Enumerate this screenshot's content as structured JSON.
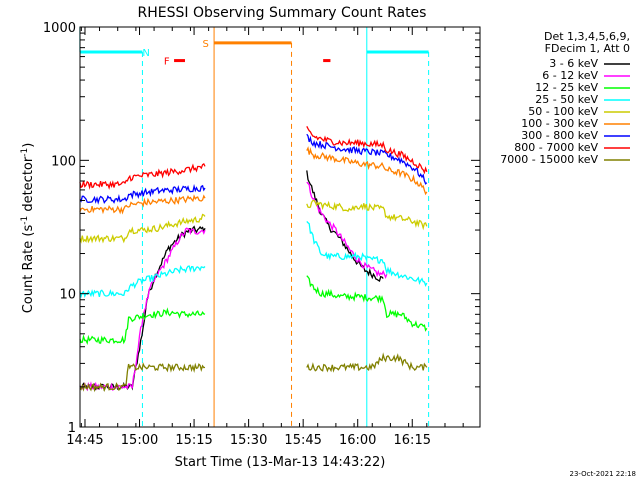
{
  "chart_data": {
    "type": "line",
    "title": "RHESSI Observing Summary Count Rates",
    "xlabel": "Start Time (13-Mar-13 14:43:22)",
    "ylabel_main": "Count Rate (s",
    "ylabel_sup1": "-1",
    "ylabel_mid": " detector",
    "ylabel_sup2": "-1",
    "ylabel_end": ")",
    "yscale": "log",
    "xlim_minutes": [
      -1.37,
      108.63
    ],
    "ylim": [
      1,
      1000
    ],
    "x_ticks": [
      {
        "label": "14:45",
        "t": 0
      },
      {
        "label": "15:00",
        "t": 15
      },
      {
        "label": "15:15",
        "t": 30
      },
      {
        "label": "15:30",
        "t": 45
      },
      {
        "label": "15:45",
        "t": 60
      },
      {
        "label": "16:00",
        "t": 75
      },
      {
        "label": "16:15",
        "t": 90
      }
    ],
    "y_ticks": [
      {
        "label": "1",
        "v": 1
      },
      {
        "label": "10",
        "v": 10
      },
      {
        "label": "100",
        "v": 100
      },
      {
        "label": "1000",
        "v": 1000
      }
    ],
    "legend_header": [
      "Det 1,3,4,5,6,9,",
      "FDecim 1, Att 0"
    ],
    "legend_position": "right-outside",
    "series": [
      {
        "name": "3 - 6 keV",
        "color": "#000000",
        "segments": [
          [
            [
              -1.4,
              2.0
            ],
            [
              13,
              2.0
            ],
            [
              16,
              5.5
            ],
            [
              17,
              9
            ],
            [
              19,
              13
            ],
            [
              21,
              17
            ],
            [
              23,
              22
            ],
            [
              25,
              25
            ],
            [
              27,
              28
            ],
            [
              29,
              30
            ],
            [
              31,
              30
            ],
            [
              33,
              31
            ]
          ],
          [
            [
              61,
              80
            ],
            [
              63,
              55
            ],
            [
              65,
              40
            ],
            [
              67,
              32
            ],
            [
              69,
              28
            ],
            [
              71,
              24
            ],
            [
              73,
              20
            ],
            [
              75,
              17
            ],
            [
              77,
              15
            ],
            [
              79,
              14
            ],
            [
              81,
              13
            ],
            [
              82,
              13
            ]
          ]
        ]
      },
      {
        "name": "6 - 12 keV",
        "color": "#ff00ff",
        "segments": [
          [
            [
              -1.4,
              2.0
            ],
            [
              13,
              2.0
            ],
            [
              16,
              7
            ],
            [
              18,
              11
            ],
            [
              20,
              14
            ],
            [
              22,
              17
            ],
            [
              24,
              21
            ],
            [
              26,
              26
            ],
            [
              28,
              30
            ],
            [
              30,
              29
            ],
            [
              33,
              30
            ]
          ],
          [
            [
              61,
              70
            ],
            [
              63,
              50
            ],
            [
              65,
              40
            ],
            [
              67,
              34
            ],
            [
              69,
              30
            ],
            [
              71,
              25
            ],
            [
              73,
              21
            ],
            [
              75,
              18
            ],
            [
              77,
              16
            ],
            [
              79,
              15
            ],
            [
              81,
              14
            ],
            [
              83,
              14
            ]
          ]
        ]
      },
      {
        "name": "12 - 25 keV",
        "color": "#00ff00",
        "segments": [
          [
            [
              -1.4,
              4.5
            ],
            [
              11,
              4.5
            ],
            [
              12,
              6.5
            ],
            [
              16,
              6.8
            ],
            [
              18,
              7
            ],
            [
              20,
              7
            ],
            [
              22,
              7.2
            ],
            [
              24,
              7.2
            ],
            [
              27,
              7
            ],
            [
              30,
              7
            ],
            [
              33,
              7
            ]
          ],
          [
            [
              61,
              13
            ],
            [
              63,
              11
            ],
            [
              65,
              10
            ],
            [
              67,
              10
            ],
            [
              70,
              9.5
            ],
            [
              73,
              9.5
            ],
            [
              75,
              9.5
            ],
            [
              79,
              9.3
            ],
            [
              82,
              9.3
            ],
            [
              83,
              7
            ],
            [
              87,
              7
            ],
            [
              90,
              6
            ],
            [
              94,
              5.5
            ]
          ]
        ]
      },
      {
        "name": "25 - 50 keV",
        "color": "#00ffff",
        "segments": [
          [
            [
              -1.4,
              10
            ],
            [
              11,
              10
            ],
            [
              12,
              11
            ],
            [
              14,
              12
            ],
            [
              18,
              13
            ],
            [
              22,
              14
            ],
            [
              26,
              15
            ],
            [
              30,
              15.5
            ],
            [
              33,
              16
            ]
          ],
          [
            [
              61,
              36
            ],
            [
              63,
              25
            ],
            [
              65,
              20
            ],
            [
              67,
              19
            ],
            [
              69,
              19
            ],
            [
              71,
              19
            ],
            [
              73,
              19
            ],
            [
              76,
              19
            ],
            [
              78,
              18
            ],
            [
              80,
              18
            ],
            [
              82,
              18
            ],
            [
              83,
              15
            ],
            [
              86,
              14
            ],
            [
              90,
              13
            ],
            [
              94,
              12
            ]
          ]
        ]
      },
      {
        "name": "50 - 100 keV",
        "color": "#cccc00",
        "segments": [
          [
            [
              -1.4,
              26
            ],
            [
              11,
              26
            ],
            [
              12,
              30
            ],
            [
              16,
              30
            ],
            [
              20,
              31
            ],
            [
              24,
              33
            ],
            [
              28,
              35
            ],
            [
              31,
              36
            ],
            [
              33,
              38
            ]
          ],
          [
            [
              61,
              45
            ],
            [
              63,
              48
            ],
            [
              66,
              46
            ],
            [
              70,
              45
            ],
            [
              73,
              43
            ],
            [
              76,
              46
            ],
            [
              79,
              44
            ],
            [
              82,
              43
            ],
            [
              83,
              38
            ],
            [
              86,
              37
            ],
            [
              90,
              35
            ],
            [
              94,
              32
            ]
          ]
        ]
      },
      {
        "name": "100 - 300 keV",
        "color": "#ff8000",
        "segments": [
          [
            [
              -1.4,
              43
            ],
            [
              11,
              43
            ],
            [
              12,
              46
            ],
            [
              16,
              48
            ],
            [
              20,
              49
            ],
            [
              24,
              50
            ],
            [
              28,
              51
            ],
            [
              31,
              52
            ],
            [
              33,
              52
            ]
          ],
          [
            [
              61,
              120
            ],
            [
              63,
              110
            ],
            [
              67,
              105
            ],
            [
              71,
              100
            ],
            [
              75,
              95
            ],
            [
              79,
              92
            ],
            [
              82,
              90
            ],
            [
              83,
              85
            ],
            [
              87,
              80
            ],
            [
              91,
              70
            ],
            [
              94,
              58
            ]
          ]
        ]
      },
      {
        "name": "300 - 800 keV",
        "color": "#0000ff",
        "segments": [
          [
            [
              -1.4,
              51
            ],
            [
              11,
              51
            ],
            [
              12,
              55
            ],
            [
              16,
              57
            ],
            [
              20,
              59
            ],
            [
              24,
              60
            ],
            [
              28,
              61
            ],
            [
              31,
              62
            ],
            [
              33,
              62
            ]
          ],
          [
            [
              61,
              150
            ],
            [
              63,
              135
            ],
            [
              67,
              128
            ],
            [
              71,
              122
            ],
            [
              75,
              118
            ],
            [
              79,
              115
            ],
            [
              82,
              112
            ],
            [
              83,
              110
            ],
            [
              87,
              100
            ],
            [
              91,
              85
            ],
            [
              94,
              68
            ]
          ]
        ]
      },
      {
        "name": "800 - 7000 keV",
        "color": "#ff0000",
        "segments": [
          [
            [
              -1.4,
              66
            ],
            [
              11,
              66
            ],
            [
              12,
              74
            ],
            [
              16,
              77
            ],
            [
              20,
              79
            ],
            [
              24,
              82
            ],
            [
              28,
              85
            ],
            [
              31,
              88
            ],
            [
              33,
              90
            ]
          ],
          [
            [
              61,
              170
            ],
            [
              63,
              150
            ],
            [
              67,
              140
            ],
            [
              71,
              135
            ],
            [
              75,
              135
            ],
            [
              79,
              132
            ],
            [
              82,
              130
            ],
            [
              83,
              120
            ],
            [
              87,
              110
            ],
            [
              91,
              95
            ],
            [
              94,
              82
            ]
          ]
        ]
      },
      {
        "name": "7000 - 15000 keV",
        "color": "#808000",
        "segments": [
          [
            [
              -1.4,
              2.0
            ],
            [
              11,
              2.0
            ],
            [
              12,
              2.8
            ],
            [
              16,
              2.8
            ],
            [
              20,
              2.8
            ],
            [
              24,
              2.8
            ],
            [
              28,
              2.8
            ],
            [
              31,
              2.8
            ],
            [
              33,
              2.8
            ]
          ],
          [
            [
              61,
              2.8
            ],
            [
              65,
              2.8
            ],
            [
              70,
              2.8
            ],
            [
              75,
              2.8
            ],
            [
              79,
              2.8
            ],
            [
              82,
              3.3
            ],
            [
              86,
              3.3
            ],
            [
              90,
              2.8
            ],
            [
              94,
              2.8
            ]
          ]
        ]
      }
    ],
    "annotations": [
      {
        "type": "bar",
        "label": "",
        "color": "#00ffff",
        "t0": -1.4,
        "t1": 15.8,
        "v": 650
      },
      {
        "type": "marker_label",
        "label": "N",
        "color": "#00ffff",
        "t": 16.8,
        "v": 650
      },
      {
        "type": "vline",
        "color": "#00ffff",
        "t": -1.4,
        "style": "solid",
        "v0": 650,
        "v1": 1000
      },
      {
        "type": "vline",
        "color": "#00ffff",
        "t": 15.8,
        "style": "dashed",
        "v0": 1,
        "v1": 650
      },
      {
        "type": "bar",
        "label": "",
        "color": "#ff0000",
        "t0": 24.5,
        "t1": 27.5,
        "v": 560
      },
      {
        "type": "marker_label",
        "label": "F",
        "color": "#ff0000",
        "t": 22.5,
        "v": 560
      },
      {
        "type": "bar",
        "label": "",
        "color": "#ff0000",
        "t0": 65.5,
        "t1": 67.5,
        "v": 560
      },
      {
        "type": "marker_label",
        "label": "S",
        "color": "#ff8000",
        "t": 33.2,
        "v": 760
      },
      {
        "type": "vline",
        "color": "#ff8000",
        "t": 35.5,
        "style": "solid",
        "v0": 1,
        "v1": 1000
      },
      {
        "type": "bar",
        "label": "",
        "color": "#ff8000",
        "t0": 35.5,
        "t1": 56.8,
        "v": 760
      },
      {
        "type": "vline",
        "color": "#ff8000",
        "t": 56.8,
        "style": "dashed",
        "v0": 1,
        "v1": 760
      },
      {
        "type": "vline",
        "color": "#00ffff",
        "t": 77.5,
        "style": "solid",
        "v0": 1,
        "v1": 1000
      },
      {
        "type": "bar",
        "label": "",
        "color": "#00ffff",
        "t0": 77.5,
        "t1": 94.5,
        "v": 650
      },
      {
        "type": "vline",
        "color": "#00ffff",
        "t": 94.5,
        "style": "dashed",
        "v0": 1,
        "v1": 650
      }
    ],
    "timestamp": "23-Oct-2021 22:18",
    "grid": false
  }
}
